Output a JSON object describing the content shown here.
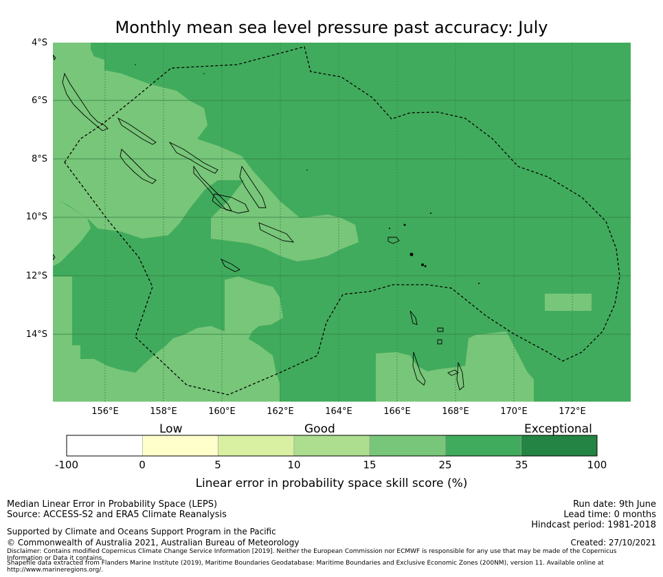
{
  "title": "Monthly mean sea level pressure past accuracy: July",
  "map": {
    "lat_labels": [
      "4°S",
      "6°S",
      "8°S",
      "10°S",
      "12°S",
      "14°S"
    ],
    "lon_labels": [
      "156°E",
      "158°E",
      "160°E",
      "162°E",
      "164°E",
      "166°E",
      "168°E",
      "170°E",
      "172°E"
    ],
    "colors": {
      "good_light": "#78c679",
      "good_dark": "#41ab5d",
      "coastline": "#000000",
      "eez_boundary": "#000000"
    }
  },
  "colorbar": {
    "category_labels": [
      "Low",
      "Good",
      "Exceptional"
    ],
    "ticks": [
      "-100",
      "0",
      "5",
      "10",
      "15",
      "25",
      "35",
      "100"
    ],
    "colors": [
      "#ffffff",
      "#ffffcc",
      "#d9f0a3",
      "#addd8e",
      "#78c679",
      "#41ab5d",
      "#238443"
    ],
    "title": "Linear error in probability space skill score (%)"
  },
  "footer": {
    "left": [
      "Median Linear Error in Probability Space (LEPS)",
      "Source: ACCESS-S2 and ERA5 Climate Reanalysis"
    ],
    "support": "Supported by Climate and Oceans Support Program in the Pacific",
    "copyright": "© Commonwealth of Australia 2021, Australian Bureau of Meteorology",
    "disclaimer": "Disclaimer: Contains modified Copernicus Climate Change Service Information [2019]. Neither the European Commission nor ECMWF is responsible for any use that may be made of the Copernicus Information or Data it contains.",
    "shapefile": "Shapefile data extracted from Flanders Marine Institute (2019), Maritime Boundaries Geodatabase: Maritime Boundaries and Exclusive Economic Zones (200NM), version 11. Available online at http://www.marineregions.org/.",
    "run_date": "Run date: 9th June",
    "lead_time": "Lead time: 0 months",
    "hindcast": "Hindcast period: 1981-2018",
    "created": "Created: 27/10/2021"
  }
}
